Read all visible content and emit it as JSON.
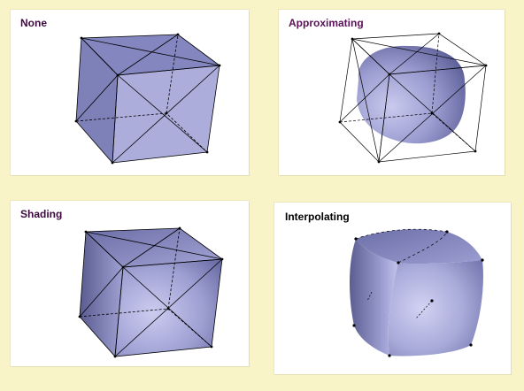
{
  "panels": [
    {
      "id": "none",
      "label": "None"
    },
    {
      "id": "approximating",
      "label": "Approximating"
    },
    {
      "id": "shading",
      "label": "Shading"
    },
    {
      "id": "interpolating",
      "label": "Interpolating"
    }
  ],
  "colors": {
    "background": "#f9f3c8",
    "panel": "#ffffff",
    "flat_face": "#a7a8d6",
    "mesh_edge": "#000000",
    "surface": "#9ea0d2"
  }
}
